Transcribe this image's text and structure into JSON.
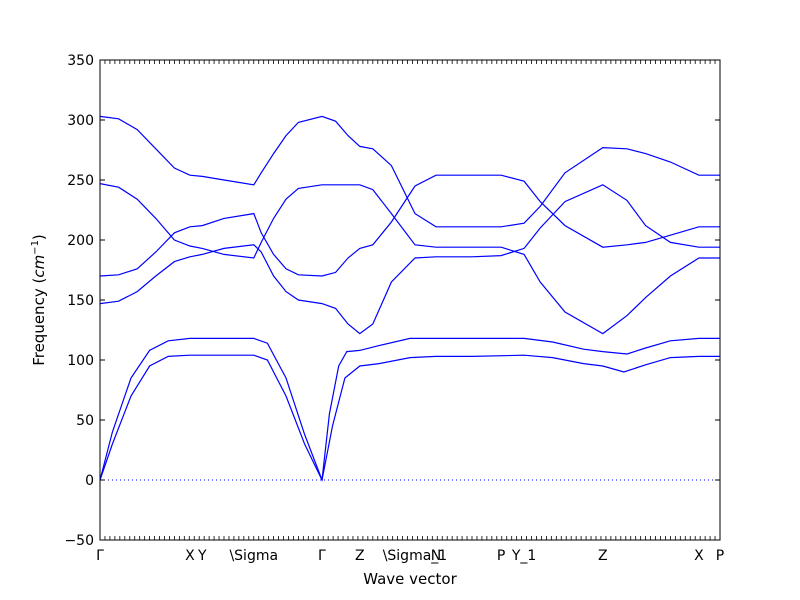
{
  "chart_data": {
    "type": "line",
    "title": "",
    "xlabel": "Wave vector",
    "ylabel_prefix": "Frequency (",
    "ylabel_unit_italic": "cm",
    "ylabel_unit_exp": "−1",
    "ylabel_suffix": ")",
    "ylim": [
      -50,
      350
    ],
    "yticks": [
      -50,
      0,
      50,
      100,
      150,
      200,
      250,
      300,
      350
    ],
    "ytick_labels": [
      "−50",
      "0",
      "50",
      "100",
      "150",
      "200",
      "250",
      "300",
      "350"
    ],
    "xlim": [
      0,
      100
    ],
    "high_symmetry_points": [
      {
        "label": "Γ",
        "x": 0
      },
      {
        "label": "X",
        "x": 14.5
      },
      {
        "label": "Y",
        "x": 16.5
      },
      {
        "label": "\\Sigma",
        "x": 24.8
      },
      {
        "label": "Γ",
        "x": 35.8
      },
      {
        "label": "Z",
        "x": 41.9
      },
      {
        "label": "\\Sigma_1",
        "x": 50.8
      },
      {
        "label": "N",
        "x": 54.2
      },
      {
        "label": "P",
        "x": 64.7
      },
      {
        "label": "Y_1",
        "x": 68.4
      },
      {
        "label": "Z",
        "x": 81.1
      },
      {
        "label": "X",
        "x": 96.6
      },
      {
        "label": "P",
        "x": 100
      }
    ],
    "zero_line": {
      "y": 0,
      "style": "dotted",
      "color": "#0000ff"
    },
    "line_color": "#0000ff",
    "grid": false,
    "series": [
      {
        "points": [
          [
            0,
            0
          ],
          [
            2,
            30
          ],
          [
            5,
            70
          ],
          [
            8,
            95
          ],
          [
            11,
            103
          ],
          [
            14.5,
            104
          ],
          [
            24.8,
            104
          ],
          [
            27,
            100
          ],
          [
            30,
            70
          ],
          [
            33,
            30
          ],
          [
            35.8,
            0
          ],
          [
            37.5,
            45
          ],
          [
            39.5,
            85
          ],
          [
            41.9,
            95
          ],
          [
            45,
            97
          ],
          [
            50,
            102
          ],
          [
            54.2,
            103
          ],
          [
            60,
            103
          ],
          [
            68.4,
            104
          ],
          [
            73,
            102
          ],
          [
            78,
            97
          ],
          [
            81.1,
            95
          ],
          [
            84.5,
            90
          ],
          [
            88,
            96
          ],
          [
            92,
            102
          ],
          [
            96.6,
            103
          ],
          [
            100,
            103
          ]
        ]
      },
      {
        "points": [
          [
            0,
            0
          ],
          [
            2,
            40
          ],
          [
            5,
            85
          ],
          [
            8,
            108
          ],
          [
            11,
            116
          ],
          [
            14.5,
            118
          ],
          [
            24.8,
            118
          ],
          [
            27,
            114
          ],
          [
            30,
            85
          ],
          [
            33,
            38
          ],
          [
            35.8,
            0
          ],
          [
            37,
            55
          ],
          [
            38.5,
            95
          ],
          [
            39.8,
            107
          ],
          [
            41.9,
            108
          ],
          [
            45,
            112
          ],
          [
            50,
            118
          ],
          [
            54.2,
            118
          ],
          [
            60,
            118
          ],
          [
            68.4,
            118
          ],
          [
            73,
            115
          ],
          [
            78,
            109
          ],
          [
            81.1,
            107
          ],
          [
            85,
            105
          ],
          [
            88,
            110
          ],
          [
            92,
            116
          ],
          [
            96.6,
            118
          ],
          [
            100,
            118
          ]
        ]
      },
      {
        "points": [
          [
            0,
            147
          ],
          [
            3,
            149
          ],
          [
            6,
            157
          ],
          [
            9,
            170
          ],
          [
            12,
            182
          ],
          [
            14.5,
            186
          ],
          [
            16.5,
            188
          ],
          [
            20,
            193
          ],
          [
            24.8,
            196
          ],
          [
            26,
            190
          ],
          [
            28,
            170
          ],
          [
            30,
            157
          ],
          [
            32,
            150
          ],
          [
            35.8,
            147
          ],
          [
            38,
            143
          ],
          [
            40,
            130
          ],
          [
            41.9,
            122
          ],
          [
            44,
            130
          ],
          [
            47,
            165
          ],
          [
            50.8,
            185
          ],
          [
            54.2,
            186
          ],
          [
            60,
            186
          ],
          [
            64.7,
            187
          ],
          [
            68.4,
            193
          ],
          [
            71,
            210
          ],
          [
            75,
            232
          ],
          [
            81.1,
            246
          ],
          [
            85,
            233
          ],
          [
            88,
            212
          ],
          [
            92,
            198
          ],
          [
            96.6,
            194
          ],
          [
            100,
            194
          ]
        ]
      },
      {
        "points": [
          [
            0,
            170
          ],
          [
            3,
            171
          ],
          [
            6,
            176
          ],
          [
            9,
            190
          ],
          [
            12,
            206
          ],
          [
            14.5,
            211
          ],
          [
            16.5,
            212
          ],
          [
            20,
            218
          ],
          [
            24.8,
            222
          ],
          [
            26,
            206
          ],
          [
            28,
            188
          ],
          [
            30,
            176
          ],
          [
            32,
            171
          ],
          [
            35.8,
            170
          ],
          [
            38,
            173
          ],
          [
            40,
            185
          ],
          [
            41.9,
            193
          ],
          [
            44,
            196
          ],
          [
            47,
            215
          ],
          [
            50.8,
            245
          ],
          [
            54.2,
            254
          ],
          [
            60,
            254
          ],
          [
            64.7,
            254
          ],
          [
            68.4,
            249
          ],
          [
            71,
            232
          ],
          [
            75,
            212
          ],
          [
            81.1,
            194
          ],
          [
            85,
            196
          ],
          [
            88,
            198
          ],
          [
            92,
            204
          ],
          [
            96.6,
            211
          ],
          [
            100,
            211
          ]
        ]
      },
      {
        "points": [
          [
            0,
            247
          ],
          [
            3,
            244
          ],
          [
            6,
            234
          ],
          [
            9,
            218
          ],
          [
            12,
            200
          ],
          [
            14.5,
            195
          ],
          [
            16.5,
            193
          ],
          [
            20,
            188
          ],
          [
            24.8,
            185
          ],
          [
            26,
            198
          ],
          [
            28,
            218
          ],
          [
            30,
            234
          ],
          [
            32,
            243
          ],
          [
            35.8,
            246
          ],
          [
            38,
            246
          ],
          [
            41.9,
            246
          ],
          [
            44,
            242
          ],
          [
            47,
            222
          ],
          [
            50.8,
            196
          ],
          [
            54.2,
            194
          ],
          [
            60,
            194
          ],
          [
            64.7,
            194
          ],
          [
            68.4,
            188
          ],
          [
            71,
            165
          ],
          [
            75,
            140
          ],
          [
            81.1,
            122
          ],
          [
            85,
            137
          ],
          [
            88,
            152
          ],
          [
            92,
            170
          ],
          [
            96.6,
            185
          ],
          [
            100,
            185
          ]
        ]
      },
      {
        "points": [
          [
            0,
            303
          ],
          [
            3,
            301
          ],
          [
            6,
            292
          ],
          [
            9,
            276
          ],
          [
            12,
            260
          ],
          [
            14.5,
            254
          ],
          [
            16.5,
            253
          ],
          [
            20,
            250
          ],
          [
            24.8,
            246
          ],
          [
            26,
            256
          ],
          [
            28,
            272
          ],
          [
            30,
            287
          ],
          [
            32,
            298
          ],
          [
            35.8,
            303
          ],
          [
            38,
            299
          ],
          [
            40,
            287
          ],
          [
            41.9,
            278
          ],
          [
            44,
            276
          ],
          [
            47,
            262
          ],
          [
            50.8,
            222
          ],
          [
            54.2,
            211
          ],
          [
            60,
            211
          ],
          [
            64.7,
            211
          ],
          [
            68.4,
            214
          ],
          [
            71,
            228
          ],
          [
            75,
            256
          ],
          [
            81.1,
            277
          ],
          [
            85,
            276
          ],
          [
            88,
            272
          ],
          [
            92,
            265
          ],
          [
            96.6,
            254
          ],
          [
            100,
            254
          ]
        ]
      }
    ]
  }
}
